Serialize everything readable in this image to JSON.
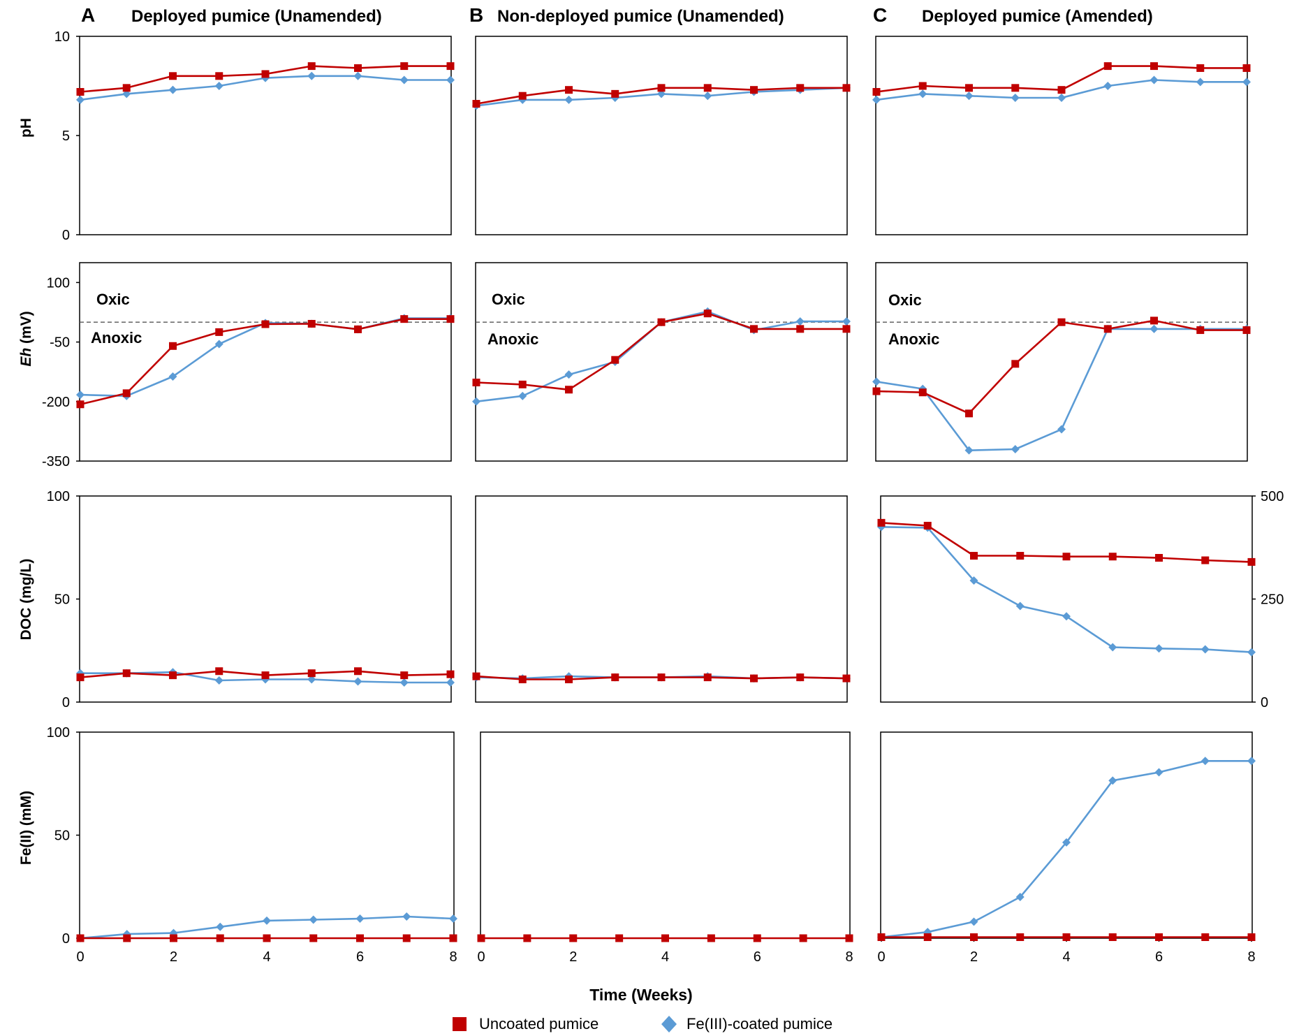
{
  "colors": {
    "uncoated": "#c00000",
    "coated": "#5b9bd5",
    "axis": "#000000",
    "ref": "#555555"
  },
  "panels": [
    {
      "letter": "A",
      "title": "Deployed pumice (Unamended)"
    },
    {
      "letter": "B",
      "title": "Non-deployed pumice (Unamended)"
    },
    {
      "letter": "C",
      "title": "Deployed pumice (Amended)"
    }
  ],
  "row_labels": {
    "ph": "pH",
    "eh_italic": "Eh",
    "eh_unit": " (mV)",
    "doc": "DOC (mg/L)",
    "fe": "Fe(II) (mM)"
  },
  "zones": {
    "oxic": "Oxic",
    "anoxic": "Anoxic"
  },
  "x_axis_label": "Time (Weeks)",
  "legend": [
    {
      "key": "uncoated",
      "label": "Uncoated pumice",
      "marker": "square"
    },
    {
      "key": "coated",
      "label": "Fe(III)-coated pumice",
      "marker": "diamond"
    }
  ],
  "chart_data": [
    {
      "id": "A-pH",
      "type": "line",
      "xlim": [
        0,
        8
      ],
      "ylim": [
        0,
        10
      ],
      "yticks": [
        "0",
        "5",
        "10"
      ],
      "xticks": [],
      "x": [
        0,
        1,
        2,
        3,
        4,
        5,
        6,
        7,
        8
      ],
      "series": [
        {
          "name": "Uncoated pumice",
          "values": [
            7.2,
            7.4,
            8.0,
            8.0,
            8.1,
            8.5,
            8.4,
            8.5,
            8.5
          ]
        },
        {
          "name": "Fe(III)-coated pumice",
          "values": [
            6.8,
            7.1,
            7.3,
            7.5,
            7.9,
            8.0,
            8.0,
            7.8,
            7.8
          ]
        }
      ]
    },
    {
      "id": "B-pH",
      "type": "line",
      "xlim": [
        0,
        8
      ],
      "ylim": [
        0,
        10
      ],
      "yticks": [],
      "xticks": [],
      "x": [
        0,
        1,
        2,
        3,
        4,
        5,
        6,
        7,
        8
      ],
      "series": [
        {
          "name": "Uncoated pumice",
          "values": [
            6.6,
            7.0,
            7.3,
            7.1,
            7.4,
            7.4,
            7.3,
            7.4,
            7.4
          ]
        },
        {
          "name": "Fe(III)-coated pumice",
          "values": [
            6.5,
            6.8,
            6.8,
            6.9,
            7.1,
            7.0,
            7.2,
            7.3,
            7.4
          ]
        }
      ]
    },
    {
      "id": "C-pH",
      "type": "line",
      "xlim": [
        0,
        8
      ],
      "ylim": [
        0,
        10
      ],
      "yticks": [],
      "xticks": [],
      "x": [
        0,
        1,
        2,
        3,
        4,
        5,
        6,
        7,
        8
      ],
      "series": [
        {
          "name": "Uncoated pumice",
          "values": [
            7.2,
            7.5,
            7.4,
            7.4,
            7.3,
            8.5,
            8.5,
            8.4,
            8.4
          ]
        },
        {
          "name": "Fe(III)-coated pumice",
          "values": [
            6.8,
            7.1,
            7.0,
            6.9,
            6.9,
            7.5,
            7.8,
            7.7,
            7.7
          ]
        }
      ]
    },
    {
      "id": "A-Eh",
      "type": "line",
      "xlim": [
        0,
        8
      ],
      "ylim": [
        -350,
        150
      ],
      "yticks": [
        "-350",
        "-200",
        "-50",
        "100"
      ],
      "xticks": [],
      "ref_line": 0,
      "x": [
        0,
        1,
        2,
        3,
        4,
        5,
        6,
        7,
        8
      ],
      "series": [
        {
          "name": "Uncoated pumice",
          "values": [
            -207,
            -179,
            -60,
            -25,
            -5,
            -4,
            -18,
            8,
            8
          ]
        },
        {
          "name": "Fe(III)-coated pumice",
          "values": [
            -183,
            -186,
            -137,
            -55,
            -2,
            -4,
            -18,
            10,
            10
          ]
        }
      ]
    },
    {
      "id": "B-Eh",
      "type": "line",
      "xlim": [
        0,
        8
      ],
      "ylim": [
        -350,
        150
      ],
      "yticks": [],
      "xticks": [],
      "ref_line": 0,
      "x": [
        0,
        1,
        2,
        3,
        4,
        5,
        6,
        7,
        8
      ],
      "series": [
        {
          "name": "Uncoated pumice",
          "values": [
            -152,
            -157,
            -170,
            -95,
            0,
            22,
            -17,
            -17,
            -17
          ]
        },
        {
          "name": "Fe(III)-coated pumice",
          "values": [
            -200,
            -186,
            -132,
            -100,
            0,
            27,
            -20,
            2,
            2
          ]
        }
      ]
    },
    {
      "id": "C-Eh",
      "type": "line",
      "xlim": [
        0,
        8
      ],
      "ylim": [
        -350,
        150
      ],
      "yticks": [],
      "xticks": [],
      "ref_line": 0,
      "x": [
        0,
        1,
        2,
        3,
        4,
        5,
        6,
        7,
        8
      ],
      "series": [
        {
          "name": "Uncoated pumice",
          "values": [
            -174,
            -177,
            -230,
            -105,
            0,
            -17,
            4,
            -20,
            -20
          ]
        },
        {
          "name": "Fe(III)-coated pumice",
          "values": [
            -150,
            -168,
            -323,
            -320,
            -270,
            -17,
            -17,
            -17,
            -17
          ]
        }
      ]
    },
    {
      "id": "A-DOC",
      "type": "line",
      "xlim": [
        0,
        8
      ],
      "ylim": [
        0,
        100
      ],
      "yticks": [
        "0",
        "50",
        "100"
      ],
      "xticks": [],
      "x": [
        0,
        1,
        2,
        3,
        4,
        5,
        6,
        7,
        8
      ],
      "series": [
        {
          "name": "Uncoated pumice",
          "values": [
            12,
            14,
            13,
            15,
            13,
            14,
            15,
            13,
            13.5
          ]
        },
        {
          "name": "Fe(III)-coated pumice",
          "values": [
            14,
            14,
            14.5,
            10.5,
            11,
            11,
            10,
            9.5,
            9.5
          ]
        }
      ]
    },
    {
      "id": "B-DOC",
      "type": "line",
      "xlim": [
        0,
        8
      ],
      "ylim": [
        0,
        100
      ],
      "yticks": [],
      "xticks": [],
      "x": [
        0,
        1,
        2,
        3,
        4,
        5,
        6,
        7,
        8
      ],
      "series": [
        {
          "name": "Uncoated pumice",
          "values": [
            12.5,
            11,
            11,
            12,
            12,
            12,
            11.5,
            12,
            11.5
          ]
        },
        {
          "name": "Fe(III)-coated pumice",
          "values": [
            12,
            11.5,
            12.5,
            12,
            12,
            12.5,
            11.5,
            12,
            11.5
          ]
        }
      ]
    },
    {
      "id": "C-DOC",
      "type": "line",
      "xlim": [
        0,
        8
      ],
      "ylim": [
        0,
        500
      ],
      "yticks": [],
      "yticks_right": [
        "0",
        "250",
        "500"
      ],
      "xticks": [],
      "x": [
        0,
        1,
        2,
        3,
        4,
        5,
        6,
        7,
        8
      ],
      "series": [
        {
          "name": "Uncoated pumice",
          "values": [
            435,
            428,
            355,
            355,
            353,
            353,
            350,
            344,
            340
          ]
        },
        {
          "name": "Fe(III)-coated pumice",
          "values": [
            425,
            423,
            295,
            233,
            208,
            133,
            130,
            128,
            121
          ]
        }
      ]
    },
    {
      "id": "A-Fe",
      "type": "line",
      "xlim": [
        0,
        8
      ],
      "ylim": [
        0,
        100
      ],
      "yticks": [
        "0",
        "50",
        "100"
      ],
      "xticks": [
        "0",
        "2",
        "4",
        "6",
        "8"
      ],
      "x": [
        0,
        1,
        2,
        3,
        4,
        5,
        6,
        7,
        8
      ],
      "series": [
        {
          "name": "Uncoated pumice",
          "values": [
            0,
            0,
            0,
            0,
            0,
            0,
            0,
            0,
            0
          ]
        },
        {
          "name": "Fe(III)-coated pumice",
          "values": [
            0,
            2,
            2.5,
            5.5,
            8.5,
            9,
            9.5,
            10.5,
            9.5
          ]
        }
      ]
    },
    {
      "id": "B-Fe",
      "type": "line",
      "xlim": [
        0,
        8
      ],
      "ylim": [
        0,
        100
      ],
      "yticks": [],
      "xticks": [
        "0",
        "2",
        "4",
        "6",
        "8"
      ],
      "x": [
        0,
        1,
        2,
        3,
        4,
        5,
        6,
        7,
        8
      ],
      "series": [
        {
          "name": "Uncoated pumice",
          "values": [
            0,
            0,
            0,
            0,
            0,
            0,
            0,
            0,
            0
          ]
        }
      ]
    },
    {
      "id": "C-Fe",
      "type": "line",
      "xlim": [
        0,
        8
      ],
      "ylim": [
        0,
        100
      ],
      "yticks": [],
      "xticks": [
        "0",
        "2",
        "4",
        "6",
        "8"
      ],
      "x": [
        0,
        1,
        2,
        3,
        4,
        5,
        6,
        7,
        8
      ],
      "series": [
        {
          "name": "Uncoated pumice",
          "values": [
            0.5,
            0.5,
            0.5,
            0.5,
            0.5,
            0.5,
            0.5,
            0.5,
            0.5
          ]
        },
        {
          "name": "Fe(III)-coated pumice",
          "values": [
            0.5,
            3,
            8,
            20,
            46.5,
            76.5,
            80.5,
            86,
            86
          ]
        }
      ]
    }
  ]
}
